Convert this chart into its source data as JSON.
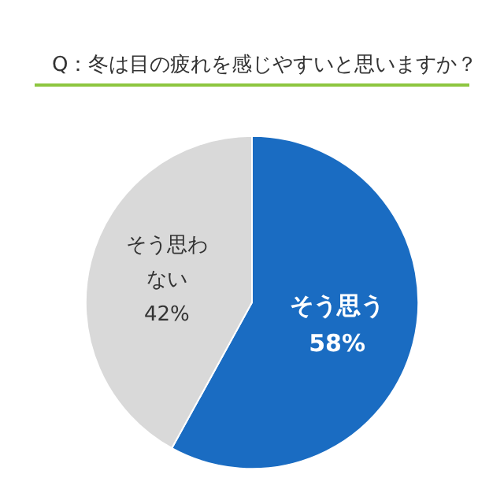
{
  "chart_data": {
    "type": "pie",
    "title": "Q：冬は目の疲れを感じやすいと思いますか？",
    "categories": [
      "そう思う",
      "そう思わない"
    ],
    "values": [
      58,
      42
    ],
    "value_labels": [
      "58%",
      "42%"
    ],
    "colors": [
      "#1a6cc2",
      "#d9d9d9"
    ],
    "data_labels": true,
    "legend": false
  }
}
